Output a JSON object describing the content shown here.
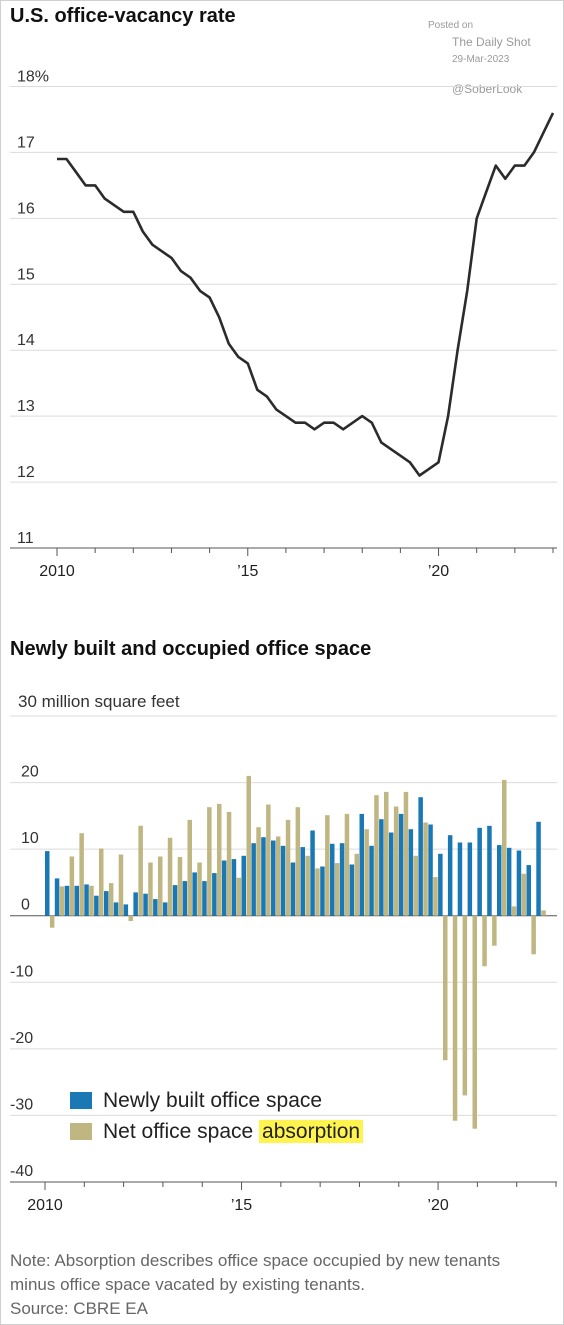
{
  "chart_data": [
    {
      "type": "line",
      "title": "U.S. office-vacancy rate",
      "ylim": [
        11,
        18
      ],
      "yticks": [
        "18%",
        "17",
        "16",
        "15",
        "14",
        "13",
        "12",
        "11"
      ],
      "xticks": [
        {
          "x": 2010,
          "label": "2010"
        },
        {
          "x": 2015,
          "label": "’15"
        },
        {
          "x": 2020,
          "label": "’20"
        }
      ],
      "x_range": [
        2010,
        2023.0
      ],
      "grid": true,
      "series": [
        {
          "color": "#2b2b2b",
          "points": [
            [
              2010.0,
              16.9
            ],
            [
              2010.25,
              16.9
            ],
            [
              2010.5,
              16.7
            ],
            [
              2010.75,
              16.5
            ],
            [
              2011.0,
              16.5
            ],
            [
              2011.25,
              16.3
            ],
            [
              2011.5,
              16.2
            ],
            [
              2011.75,
              16.1
            ],
            [
              2012.0,
              16.1
            ],
            [
              2012.25,
              15.8
            ],
            [
              2012.5,
              15.6
            ],
            [
              2012.75,
              15.5
            ],
            [
              2013.0,
              15.4
            ],
            [
              2013.25,
              15.2
            ],
            [
              2013.5,
              15.1
            ],
            [
              2013.75,
              14.9
            ],
            [
              2014.0,
              14.8
            ],
            [
              2014.25,
              14.5
            ],
            [
              2014.5,
              14.1
            ],
            [
              2014.75,
              13.9
            ],
            [
              2015.0,
              13.8
            ],
            [
              2015.25,
              13.4
            ],
            [
              2015.5,
              13.3
            ],
            [
              2015.75,
              13.1
            ],
            [
              2016.0,
              13.0
            ],
            [
              2016.25,
              12.9
            ],
            [
              2016.5,
              12.9
            ],
            [
              2016.75,
              12.8
            ],
            [
              2017.0,
              12.9
            ],
            [
              2017.25,
              12.9
            ],
            [
              2017.5,
              12.8
            ],
            [
              2017.75,
              12.9
            ],
            [
              2018.0,
              13.0
            ],
            [
              2018.25,
              12.9
            ],
            [
              2018.5,
              12.6
            ],
            [
              2018.75,
              12.5
            ],
            [
              2019.0,
              12.4
            ],
            [
              2019.25,
              12.3
            ],
            [
              2019.5,
              12.1
            ],
            [
              2019.75,
              12.2
            ],
            [
              2020.0,
              12.3
            ],
            [
              2020.25,
              13.0
            ],
            [
              2020.5,
              14.0
            ],
            [
              2020.75,
              14.9
            ],
            [
              2021.0,
              16.0
            ],
            [
              2021.25,
              16.4
            ],
            [
              2021.5,
              16.8
            ],
            [
              2021.75,
              16.6
            ],
            [
              2022.0,
              16.8
            ],
            [
              2022.25,
              16.8
            ],
            [
              2022.5,
              17.0
            ],
            [
              2022.75,
              17.3
            ],
            [
              2023.0,
              17.6
            ]
          ]
        }
      ]
    },
    {
      "type": "bar",
      "title": "Newly built and occupied office space",
      "ylabel": "30 million square feet",
      "ylim": [
        -40,
        30
      ],
      "yticks": [
        "30 million square feet",
        "20",
        "10",
        "0",
        "-10",
        "-20",
        "-30",
        "-40"
      ],
      "xticks": [
        {
          "x": 2010,
          "label": "2010"
        },
        {
          "x": 2015,
          "label": "’15"
        },
        {
          "x": 2020,
          "label": "’20"
        }
      ],
      "x_range": [
        2010,
        2023.0
      ],
      "grid": true,
      "legend_position": "bottom-left",
      "series": [
        {
          "name": "Newly built office space",
          "color": "#1a79b5",
          "values": [
            9.7,
            5.6,
            4.5,
            4.5,
            4.7,
            3.0,
            3.7,
            2.0,
            1.7,
            3.5,
            3.3,
            2.5,
            2.0,
            4.6,
            5.2,
            6.5,
            5.2,
            6.4,
            8.3,
            8.5,
            9.0,
            10.9,
            11.8,
            11.3,
            10.5,
            8.0,
            10.3,
            12.8,
            7.4,
            10.8,
            10.9,
            7.7,
            15.3,
            10.5,
            14.5,
            12.5,
            15.3,
            13.0,
            17.8,
            13.7,
            9.3,
            12.1,
            11.0,
            11.0,
            13.2,
            13.5,
            10.6,
            10.2,
            9.8,
            7.6,
            14.1
          ]
        },
        {
          "name": "Net office space absorption",
          "label_parts": [
            "Net office space ",
            "absorption"
          ],
          "color": "#bfb681",
          "values": [
            -1.8,
            4.4,
            8.9,
            12.4,
            4.5,
            10.1,
            4.9,
            9.2,
            -0.8,
            13.5,
            8.0,
            8.9,
            11.7,
            8.8,
            14.4,
            8.0,
            16.3,
            16.8,
            15.6,
            5.7,
            21.0,
            13.3,
            16.7,
            11.9,
            14.4,
            16.3,
            9.0,
            7.1,
            15.1,
            7.9,
            15.3,
            9.3,
            13.0,
            18.1,
            18.6,
            16.4,
            18.6,
            9.0,
            14.0,
            5.8,
            -21.7,
            -30.8,
            -27.0,
            -32.0,
            -7.6,
            -4.5,
            20.4,
            1.4,
            6.3,
            -5.8,
            0.8
          ]
        }
      ]
    }
  ],
  "watermark": {
    "posted_on": "Posted on",
    "source": "The Daily Shot",
    "date": "29-Mar-2023",
    "handle": "@SoberLook"
  },
  "footnote": {
    "note": "Note: Absorption describes office space occupied by new tenants minus office space vacated by existing tenants.",
    "source": "Source: CBRE EA"
  }
}
